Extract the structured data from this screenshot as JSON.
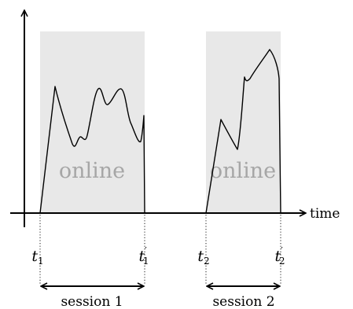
{
  "axis": {
    "x_label": "time"
  },
  "regions": [
    {
      "label": "online"
    },
    {
      "label": "online"
    }
  ],
  "ticks": [
    {
      "base": "t",
      "sub": "1",
      "prime": ""
    },
    {
      "base": "t",
      "sub": "1",
      "prime": "′"
    },
    {
      "base": "t",
      "sub": "2",
      "prime": ""
    },
    {
      "base": "t",
      "sub": "2",
      "prime": "′"
    }
  ],
  "sessions": [
    {
      "label": "session 1"
    },
    {
      "label": "session 2"
    }
  ],
  "colors": {
    "region_fill": "#e8e8e8",
    "online_text": "#a6a6a6",
    "line": "#000000"
  }
}
